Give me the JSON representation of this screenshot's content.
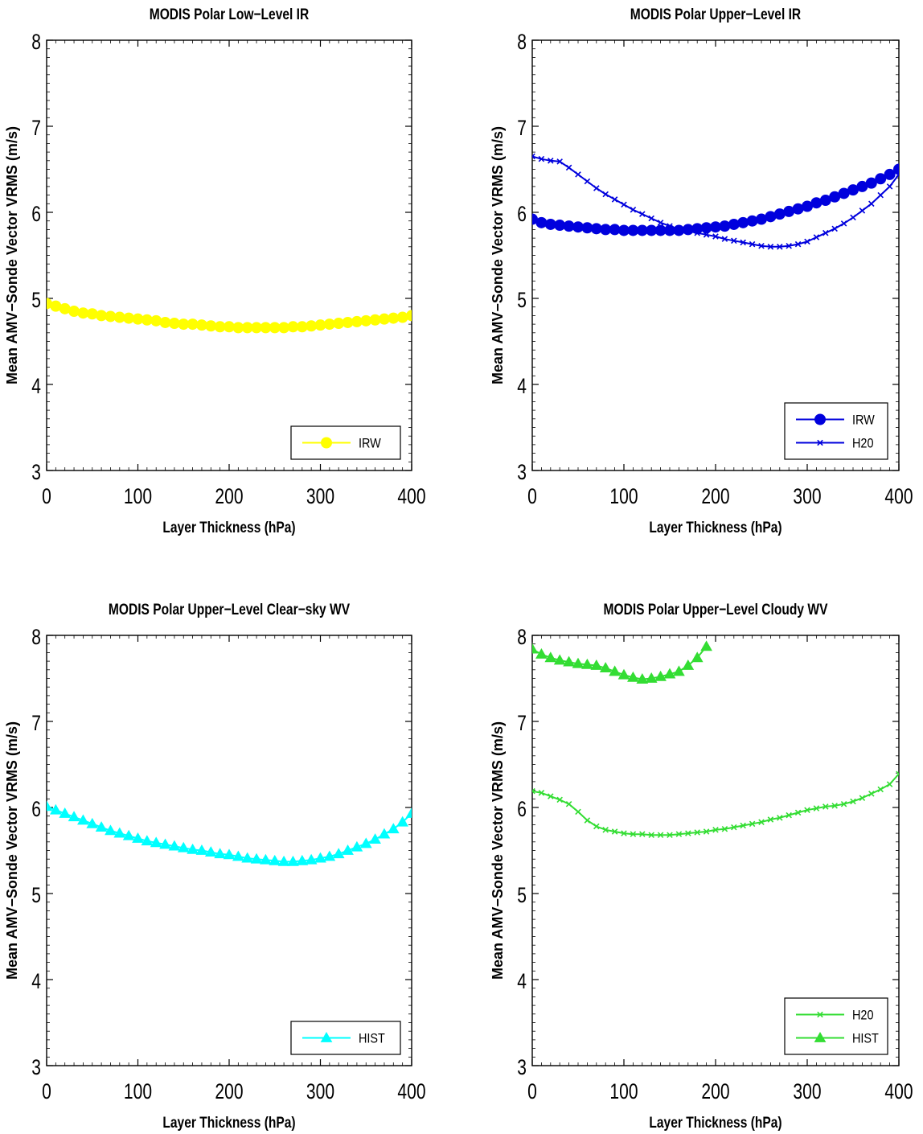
{
  "chart_data": [
    {
      "type": "line",
      "title": "MODIS Polar Low−Level IR",
      "xlabel": "Layer Thickness (hPa)",
      "ylabel": "Mean AMV−Sonde Vector VRMS (m/s)",
      "xlim": [
        0,
        400
      ],
      "ylim": [
        3,
        8
      ],
      "xticks": [
        "0",
        "100",
        "200",
        "300",
        "400"
      ],
      "yticks": [
        "3",
        "4",
        "5",
        "6",
        "7",
        "8"
      ],
      "grid": false,
      "legend_position": "bottom-right",
      "series": [
        {
          "name": "IRW",
          "color": "#ffff00",
          "marker": "dot",
          "x": [
            0,
            10,
            20,
            30,
            40,
            50,
            60,
            70,
            80,
            90,
            100,
            110,
            120,
            130,
            140,
            150,
            160,
            170,
            180,
            190,
            200,
            210,
            220,
            230,
            240,
            250,
            260,
            270,
            280,
            290,
            300,
            310,
            320,
            330,
            340,
            350,
            360,
            370,
            380,
            390,
            400
          ],
          "y": [
            4.94,
            4.91,
            4.88,
            4.85,
            4.83,
            4.82,
            4.8,
            4.79,
            4.78,
            4.77,
            4.76,
            4.75,
            4.74,
            4.72,
            4.71,
            4.7,
            4.7,
            4.69,
            4.68,
            4.67,
            4.67,
            4.66,
            4.66,
            4.66,
            4.66,
            4.66,
            4.66,
            4.67,
            4.67,
            4.68,
            4.69,
            4.7,
            4.71,
            4.72,
            4.73,
            4.74,
            4.75,
            4.76,
            4.77,
            4.78,
            4.8
          ]
        }
      ]
    },
    {
      "type": "line",
      "title": "MODIS Polar Upper−Level IR",
      "xlabel": "Layer Thickness (hPa)",
      "ylabel": "Mean AMV−Sonde Vector VRMS (m/s)",
      "xlim": [
        0,
        400
      ],
      "ylim": [
        3,
        8
      ],
      "xticks": [
        "0",
        "100",
        "200",
        "300",
        "400"
      ],
      "yticks": [
        "3",
        "4",
        "5",
        "6",
        "7",
        "8"
      ],
      "grid": false,
      "legend_position": "bottom-right",
      "series": [
        {
          "name": "IRW",
          "color": "#0000dd",
          "marker": "dot",
          "x": [
            0,
            10,
            20,
            30,
            40,
            50,
            60,
            70,
            80,
            90,
            100,
            110,
            120,
            130,
            140,
            150,
            160,
            170,
            180,
            190,
            200,
            210,
            220,
            230,
            240,
            250,
            260,
            270,
            280,
            290,
            300,
            310,
            320,
            330,
            340,
            350,
            360,
            370,
            380,
            390,
            400
          ],
          "y": [
            5.92,
            5.88,
            5.86,
            5.85,
            5.84,
            5.83,
            5.82,
            5.81,
            5.8,
            5.8,
            5.79,
            5.79,
            5.79,
            5.79,
            5.79,
            5.79,
            5.79,
            5.8,
            5.81,
            5.82,
            5.83,
            5.84,
            5.86,
            5.88,
            5.9,
            5.92,
            5.95,
            5.98,
            6.01,
            6.04,
            6.07,
            6.11,
            6.14,
            6.18,
            6.22,
            6.26,
            6.3,
            6.34,
            6.39,
            6.44,
            6.5
          ]
        },
        {
          "name": "H20",
          "color": "#0000dd",
          "marker": "x",
          "x": [
            0,
            10,
            20,
            30,
            40,
            50,
            60,
            70,
            80,
            90,
            100,
            110,
            120,
            130,
            140,
            150,
            160,
            170,
            180,
            190,
            200,
            210,
            220,
            230,
            240,
            250,
            260,
            270,
            280,
            290,
            300,
            310,
            320,
            330,
            340,
            350,
            360,
            370,
            380,
            390,
            400
          ],
          "y": [
            6.65,
            6.62,
            6.6,
            6.59,
            6.52,
            6.44,
            6.36,
            6.28,
            6.21,
            6.15,
            6.09,
            6.03,
            5.98,
            5.93,
            5.88,
            5.84,
            5.8,
            5.78,
            5.76,
            5.74,
            5.72,
            5.69,
            5.67,
            5.65,
            5.63,
            5.61,
            5.6,
            5.6,
            5.61,
            5.63,
            5.66,
            5.71,
            5.76,
            5.81,
            5.87,
            5.94,
            6.02,
            6.1,
            6.2,
            6.3,
            6.44
          ]
        }
      ]
    },
    {
      "type": "line",
      "title": "MODIS Polar Upper−Level Clear−sky WV",
      "xlabel": "Layer Thickness (hPa)",
      "ylabel": "Mean AMV−Sonde Vector VRMS (m/s)",
      "xlim": [
        0,
        400
      ],
      "ylim": [
        3,
        8
      ],
      "xticks": [
        "0",
        "100",
        "200",
        "300",
        "400"
      ],
      "yticks": [
        "3",
        "4",
        "5",
        "6",
        "7",
        "8"
      ],
      "grid": false,
      "legend_position": "bottom-right",
      "series": [
        {
          "name": "HIST",
          "color": "#00ffff",
          "marker": "triangle",
          "x": [
            0,
            10,
            20,
            30,
            40,
            50,
            60,
            70,
            80,
            90,
            100,
            110,
            120,
            130,
            140,
            150,
            160,
            170,
            180,
            190,
            200,
            210,
            220,
            230,
            240,
            250,
            260,
            270,
            280,
            290,
            300,
            310,
            320,
            330,
            340,
            350,
            360,
            370,
            380,
            390,
            400
          ],
          "y": [
            6.01,
            5.97,
            5.93,
            5.89,
            5.85,
            5.81,
            5.77,
            5.73,
            5.7,
            5.67,
            5.64,
            5.61,
            5.59,
            5.57,
            5.55,
            5.53,
            5.51,
            5.5,
            5.48,
            5.46,
            5.45,
            5.43,
            5.41,
            5.4,
            5.39,
            5.38,
            5.37,
            5.37,
            5.38,
            5.39,
            5.41,
            5.43,
            5.46,
            5.5,
            5.54,
            5.58,
            5.63,
            5.69,
            5.75,
            5.83,
            5.93
          ]
        }
      ]
    },
    {
      "type": "line",
      "title": "MODIS Polar Upper−Level Cloudy WV",
      "xlabel": "Layer Thickness (hPa)",
      "ylabel": "Mean AMV−Sonde Vector VRMS (m/s)",
      "xlim": [
        0,
        400
      ],
      "ylim": [
        3,
        8
      ],
      "xticks": [
        "0",
        "100",
        "200",
        "300",
        "400"
      ],
      "yticks": [
        "3",
        "4",
        "5",
        "6",
        "7",
        "8"
      ],
      "grid": false,
      "legend_position": "bottom-right",
      "series": [
        {
          "name": "H20",
          "color": "#33dd33",
          "marker": "x",
          "x": [
            0,
            10,
            20,
            30,
            40,
            50,
            60,
            70,
            80,
            90,
            100,
            110,
            120,
            130,
            140,
            150,
            160,
            170,
            180,
            190,
            200,
            210,
            220,
            230,
            240,
            250,
            260,
            270,
            280,
            290,
            300,
            310,
            320,
            330,
            340,
            350,
            360,
            370,
            380,
            390,
            400
          ],
          "y": [
            6.19,
            6.17,
            6.13,
            6.09,
            6.04,
            5.95,
            5.85,
            5.78,
            5.74,
            5.72,
            5.7,
            5.69,
            5.69,
            5.68,
            5.68,
            5.68,
            5.69,
            5.7,
            5.71,
            5.72,
            5.74,
            5.75,
            5.77,
            5.79,
            5.81,
            5.83,
            5.86,
            5.88,
            5.91,
            5.94,
            5.97,
            5.99,
            6.01,
            6.02,
            6.04,
            6.07,
            6.11,
            6.16,
            6.21,
            6.27,
            6.39
          ]
        },
        {
          "name": "HIST",
          "color": "#33dd33",
          "marker": "triangle",
          "x": [
            0,
            10,
            20,
            30,
            40,
            50,
            60,
            70,
            80,
            90,
            100,
            110,
            120,
            130,
            140,
            150,
            160,
            170,
            180,
            190
          ],
          "y": [
            7.84,
            7.78,
            7.74,
            7.71,
            7.69,
            7.67,
            7.66,
            7.65,
            7.62,
            7.58,
            7.54,
            7.51,
            7.49,
            7.5,
            7.52,
            7.55,
            7.58,
            7.65,
            7.74,
            7.87
          ]
        }
      ]
    }
  ]
}
